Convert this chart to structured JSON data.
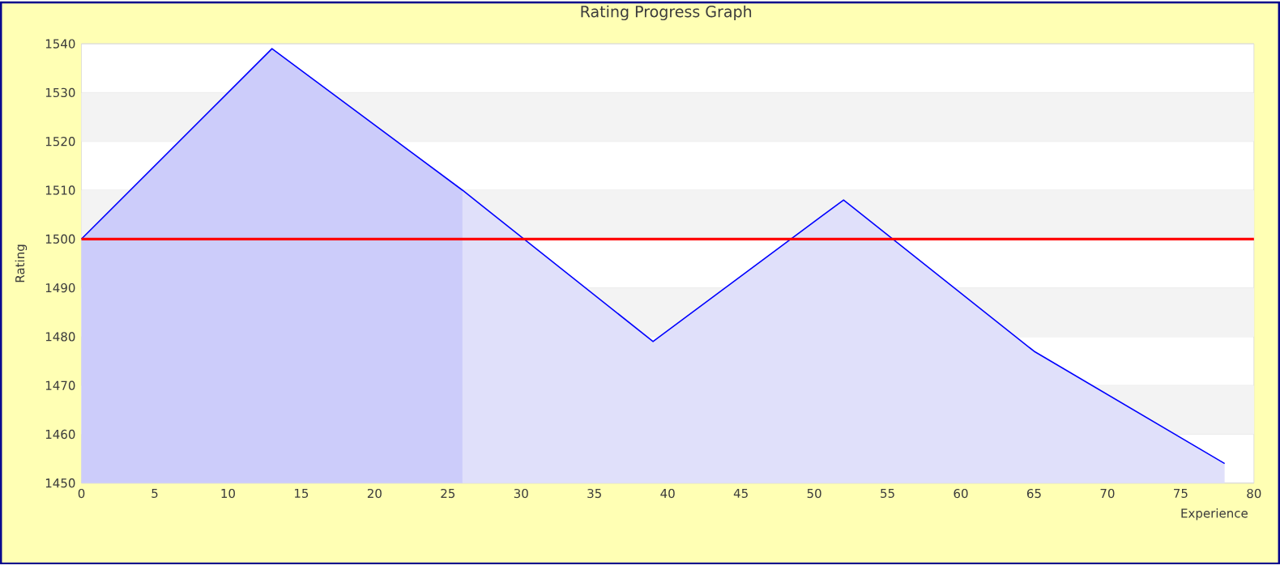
{
  "chart_data": {
    "type": "line",
    "title": "Rating Progress Graph",
    "xlabel": "Experience",
    "ylabel": "Rating",
    "xlim": [
      0,
      80
    ],
    "xticks": [
      0,
      5,
      10,
      15,
      20,
      25,
      30,
      35,
      40,
      45,
      50,
      55,
      60,
      65,
      70,
      75,
      80
    ],
    "ylim": [
      1450,
      1540
    ],
    "yticks": [
      1450,
      1460,
      1470,
      1480,
      1490,
      1500,
      1510,
      1520,
      1530,
      1540
    ],
    "grid": "y",
    "series": [
      {
        "type": "area",
        "x": [
          0,
          13,
          26
        ],
        "values": [
          1500,
          1539,
          1510
        ],
        "color": "#ccccfa"
      },
      {
        "type": "area",
        "x": [
          26,
          39,
          52,
          65,
          78
        ],
        "values": [
          1510,
          1479,
          1508,
          1477,
          1454
        ],
        "color": "#e0e0fa"
      },
      {
        "x": [
          0,
          13,
          26,
          39,
          52,
          65,
          78
        ],
        "values": [
          1500,
          1539,
          1510,
          1479,
          1508,
          1477,
          1454
        ],
        "color": "#0000ff"
      }
    ],
    "ref_lines": [
      {
        "axis": "y",
        "value": 1500,
        "color": "#ff0000"
      }
    ]
  }
}
